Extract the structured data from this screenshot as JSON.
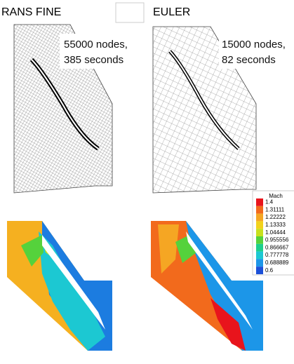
{
  "panels": {
    "rans": {
      "title": "RANS FINE",
      "nodes": "55000 nodes,",
      "time": "385 seconds"
    },
    "euler": {
      "title": "EULER",
      "nodes": "15000 nodes,",
      "time": "82 seconds"
    }
  },
  "legend": {
    "title": "Mach",
    "levels": [
      "1.4",
      "1.31111",
      "1.22222",
      "1.13333",
      "1.04444",
      "0.955556",
      "0.866667",
      "0.777778",
      "0.688889",
      "0.6"
    ],
    "colors": [
      "#e8141c",
      "#f26a1c",
      "#f5a623",
      "#f2d21c",
      "#c8e01c",
      "#55d23c",
      "#1ccf8c",
      "#1cc8d2",
      "#1c96e8",
      "#1c50d8"
    ]
  }
}
